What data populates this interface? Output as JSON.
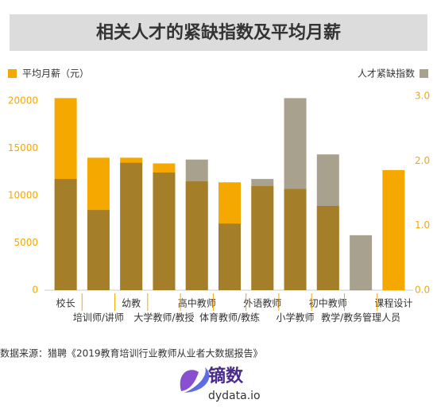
{
  "chart_data": {
    "type": "bar",
    "title": "相关人才的紧缺指数及平均月薪",
    "categories": [
      "校长",
      "培训师/讲师",
      "幼教",
      "大学教师/教授",
      "高中教师",
      "体育教师/教练",
      "外语教师",
      "小学教师",
      "初中教师",
      "教学/教务管理人员",
      "课程设计"
    ],
    "series": [
      {
        "name": "平均月薪（元）",
        "color": "#f5a800",
        "values": [
          20300,
          14000,
          14000,
          13400,
          11500,
          11400,
          11000,
          10700,
          8900,
          null,
          12700
        ]
      },
      {
        "name": "人才紧缺指数",
        "color": "#6e6242",
        "axis": "y2",
        "values": [
          1.72,
          1.24,
          1.97,
          1.82,
          2.02,
          1.03,
          1.72,
          2.97,
          2.1,
          0.85,
          null
        ]
      }
    ],
    "ylim": [
      0,
      20500
    ],
    "yticks": [
      0,
      5000,
      10000,
      15000,
      20000
    ],
    "y2lim": [
      0,
      3.0
    ],
    "y2ticks": [
      {
        "value": 0,
        "label": "0.0"
      },
      {
        "value": 1,
        "label": "1.0"
      },
      {
        "value": 2,
        "label": "2.0"
      },
      {
        "value": 3,
        "label": "3.0"
      }
    ],
    "source": "数据来源：猎聘《2019教育培训行业教师从业者大数据报告》",
    "logo": "镝数",
    "logo_url": "dydata.io"
  }
}
